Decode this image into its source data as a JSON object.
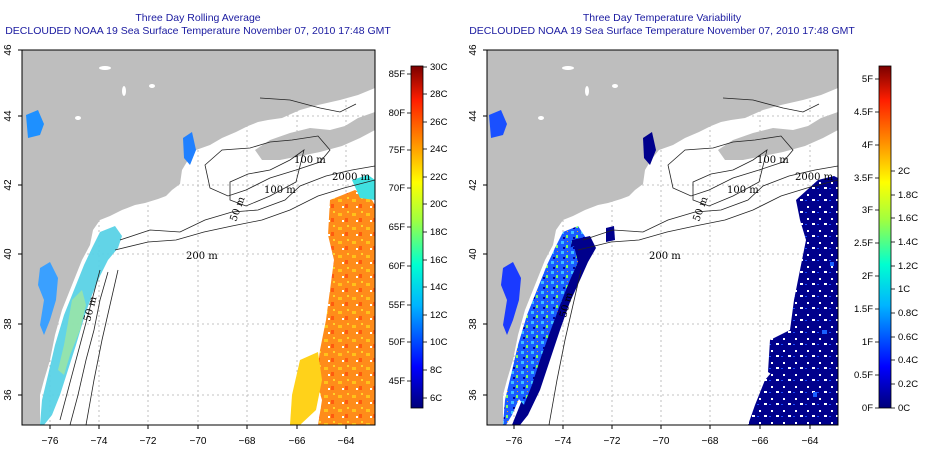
{
  "panels": [
    {
      "title_line1": "Three Day Rolling Average",
      "title_line2": "DECLOUDED NOAA 19 Sea Surface Temperature November 07, 2010 17:48 GMT",
      "x_ticks": [
        "−76",
        "−74",
        "−72",
        "−70",
        "−68",
        "−66",
        "−64"
      ],
      "y_ticks": [
        "36",
        "38",
        "40",
        "42",
        "44",
        "46"
      ],
      "contour_labels": [
        "100 m",
        "100 m",
        "2000 m",
        "50 m",
        "200 m",
        "50 m"
      ],
      "colorbar": {
        "left_labels": [
          "45F",
          "50F",
          "55F",
          "60F",
          "65F",
          "70F",
          "75F",
          "80F",
          "85F"
        ],
        "right_labels": [
          "6C",
          "8C",
          "10C",
          "12C",
          "14C",
          "16C",
          "18C",
          "20C",
          "22C",
          "24C",
          "26C",
          "28C",
          "30C"
        ]
      }
    },
    {
      "title_line1": "Three Day Temperature Variability",
      "title_line2": "DECLOUDED NOAA 19 Sea Surface Temperature November 07, 2010 17:48 GMT",
      "x_ticks": [
        "−76",
        "−74",
        "−72",
        "−70",
        "−68",
        "−66",
        "−64"
      ],
      "y_ticks": [
        "36",
        "38",
        "40",
        "42",
        "44",
        "46"
      ],
      "contour_labels": [
        "100 m",
        "100 m",
        "2000 m",
        "50 m",
        "200 m",
        "50 m"
      ],
      "colorbar": {
        "left_labels": [
          "0F",
          "0.5F",
          "1F",
          "1.5F",
          "2F",
          "2.5F",
          "3F",
          "3.5F",
          "4F",
          "4.5F",
          "5F"
        ],
        "right_labels": [
          "0C",
          "0.2C",
          "0.4C",
          "0.6C",
          "0.8C",
          "1C",
          "1.2C",
          "1.4C",
          "1.6C",
          "1.8C",
          "2C"
        ]
      }
    }
  ],
  "colors": {
    "land": "#bebebe",
    "title": "#1a1aa0",
    "grid": "#b0b0b0",
    "frame": "#000000"
  }
}
